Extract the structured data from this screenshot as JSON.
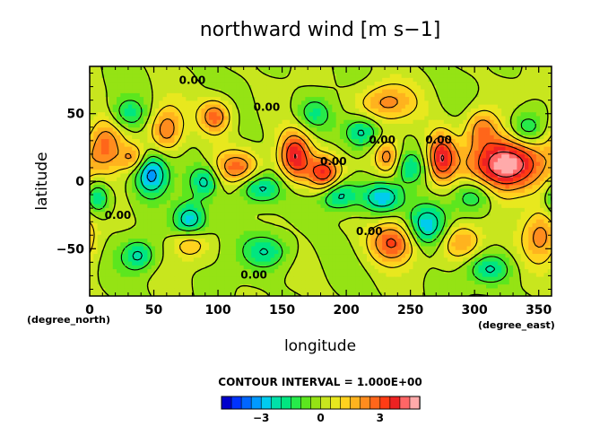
{
  "chart_data": {
    "type": "heatmap",
    "title": "northward wind [m s−1]",
    "xlabel": "longitude",
    "ylabel": "latitude",
    "x_unit_label": "(degree_east)",
    "y_unit_label": "(degree_north)",
    "xlim": [
      0,
      360
    ],
    "ylim": [
      -85,
      85
    ],
    "x_ticks": [
      0,
      50,
      100,
      150,
      200,
      250,
      300,
      350
    ],
    "y_ticks": [
      -50,
      0,
      50
    ],
    "y_tick_labels": [
      "−50",
      "0",
      "50"
    ],
    "contour_interval_text": "CONTOUR INTERVAL = 1.000E+00",
    "contour_labels": [
      {
        "text": "0.00",
        "lon": 80,
        "lat": 72
      },
      {
        "text": "0.00",
        "lon": 138,
        "lat": 52
      },
      {
        "text": "0.00",
        "lon": 228,
        "lat": 28
      },
      {
        "text": "0.00",
        "lon": 272,
        "lat": 28
      },
      {
        "text": "0.00",
        "lon": 190,
        "lat": 12
      },
      {
        "text": "0.00",
        "lon": 22,
        "lat": -28
      },
      {
        "text": "0.00",
        "lon": 218,
        "lat": -40
      },
      {
        "text": "0.00",
        "lon": 128,
        "lat": -72
      }
    ],
    "field_centers": [
      {
        "lon": 325,
        "lat": 12,
        "amp": 5.2,
        "sx": 20,
        "sy": 15
      },
      {
        "lon": 160,
        "lat": 18,
        "amp": 4.0,
        "sx": 9,
        "sy": 13
      },
      {
        "lon": 183,
        "lat": 5,
        "amp": 3.6,
        "sx": 9,
        "sy": 10
      },
      {
        "lon": 274,
        "lat": 17,
        "amp": 3.8,
        "sx": 8,
        "sy": 13
      },
      {
        "lon": 13,
        "lat": 28,
        "amp": 2.6,
        "sx": 10,
        "sy": 15
      },
      {
        "lon": 60,
        "lat": 38,
        "amp": 2.5,
        "sx": 9,
        "sy": 12
      },
      {
        "lon": 98,
        "lat": 48,
        "amp": 2.8,
        "sx": 9,
        "sy": 9
      },
      {
        "lon": 115,
        "lat": 10,
        "amp": 2.5,
        "sx": 13,
        "sy": 9
      },
      {
        "lon": 236,
        "lat": -45,
        "amp": 3.2,
        "sx": 13,
        "sy": 11
      },
      {
        "lon": 352,
        "lat": -40,
        "amp": 2.3,
        "sx": 10,
        "sy": 14
      },
      {
        "lon": 230,
        "lat": 58,
        "amp": 2.2,
        "sx": 16,
        "sy": 10
      },
      {
        "lon": 232,
        "lat": 18,
        "amp": 2.3,
        "sx": 7,
        "sy": 9
      },
      {
        "lon": 290,
        "lat": -45,
        "amp": 2.2,
        "sx": 12,
        "sy": 10
      },
      {
        "lon": 34,
        "lat": 17,
        "amp": 2.0,
        "sx": 7,
        "sy": 7
      },
      {
        "lon": 78,
        "lat": -45,
        "amp": 2.1,
        "sx": 9,
        "sy": 8
      },
      {
        "lon": 305,
        "lat": 40,
        "amp": 2.2,
        "sx": 9,
        "sy": 10
      },
      {
        "lon": 48,
        "lat": 5,
        "amp": -3.4,
        "sx": 9,
        "sy": 11
      },
      {
        "lon": 78,
        "lat": -30,
        "amp": -3.0,
        "sx": 9,
        "sy": 10
      },
      {
        "lon": 263,
        "lat": -33,
        "amp": -3.2,
        "sx": 11,
        "sy": 11
      },
      {
        "lon": 193,
        "lat": -10,
        "amp": -2.8,
        "sx": 11,
        "sy": 8
      },
      {
        "lon": 228,
        "lat": -12,
        "amp": -2.8,
        "sx": 11,
        "sy": 8
      },
      {
        "lon": 6,
        "lat": -12,
        "amp": -2.5,
        "sx": 7,
        "sy": 9
      },
      {
        "lon": 132,
        "lat": -5,
        "amp": -2.4,
        "sx": 12,
        "sy": 8
      },
      {
        "lon": 90,
        "lat": 0,
        "amp": -2.2,
        "sx": 8,
        "sy": 8
      },
      {
        "lon": 300,
        "lat": -10,
        "amp": -2.2,
        "sx": 11,
        "sy": 9
      },
      {
        "lon": 212,
        "lat": 36,
        "amp": -2.3,
        "sx": 9,
        "sy": 8
      },
      {
        "lon": 138,
        "lat": -52,
        "amp": -2.0,
        "sx": 13,
        "sy": 9
      },
      {
        "lon": 38,
        "lat": -55,
        "amp": -2.2,
        "sx": 9,
        "sy": 8
      },
      {
        "lon": 340,
        "lat": 38,
        "amp": -2.2,
        "sx": 10,
        "sy": 9
      },
      {
        "lon": 312,
        "lat": -65,
        "amp": -2.0,
        "sx": 12,
        "sy": 8
      },
      {
        "lon": 30,
        "lat": 50,
        "amp": -1.8,
        "sx": 10,
        "sy": 8
      },
      {
        "lon": 175,
        "lat": 50,
        "amp": -1.6,
        "sx": 10,
        "sy": 9
      },
      {
        "lon": 250,
        "lat": 10,
        "amp": -1.8,
        "sx": 8,
        "sy": 8
      }
    ],
    "colorbar": {
      "levels": [
        -5,
        -4,
        -3,
        -2,
        -1,
        0,
        1,
        2,
        3,
        4,
        5
      ],
      "tick_values": [
        -3,
        0,
        3
      ],
      "tick_labels": [
        "−3",
        "0",
        "3"
      ],
      "colors": [
        "#0000cc",
        "#0033ff",
        "#0066ff",
        "#0099ff",
        "#00ccee",
        "#00e0a8",
        "#00e680",
        "#26ea4a",
        "#5ce61e",
        "#95e314",
        "#c8e61e",
        "#e8e81e",
        "#ffd21e",
        "#ffb31e",
        "#ff8c1e",
        "#ff661a",
        "#ff3c14",
        "#ee2222",
        "#ff6666",
        "#ffaaaa"
      ]
    }
  }
}
